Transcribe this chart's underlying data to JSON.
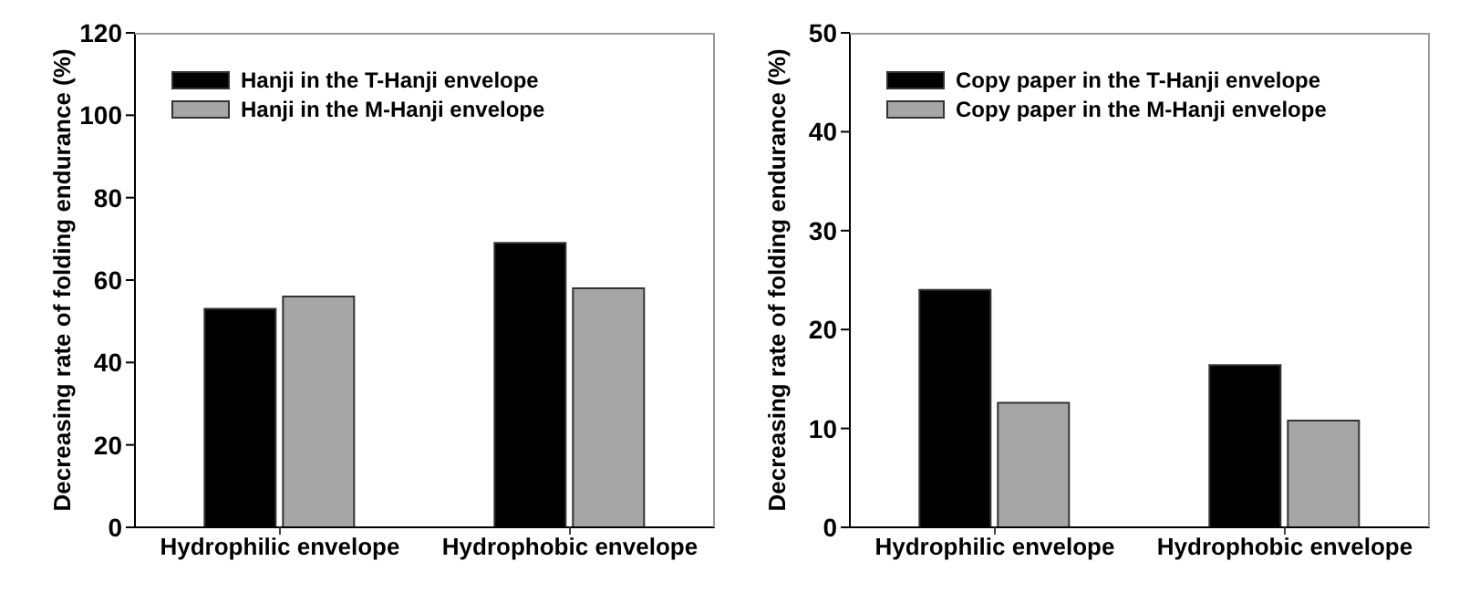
{
  "chart_data": [
    {
      "type": "bar",
      "ylabel": "Decreasing rate of folding endurance (%)",
      "categories": [
        "Hydrophilic envelope",
        "Hydrophobic envelope"
      ],
      "series": [
        {
          "name": "Hanji in the T-Hanji envelope",
          "color": "#000000",
          "values": [
            53,
            69
          ]
        },
        {
          "name": "Hanji in the M-Hanji envelope",
          "color": "#a6a6a6",
          "values": [
            56,
            58
          ]
        }
      ],
      "ylim": [
        0,
        120
      ],
      "yticks": [
        0,
        20,
        40,
        60,
        80,
        100,
        120
      ],
      "grid": false,
      "legend": "top left"
    },
    {
      "type": "bar",
      "ylabel": "Decreasing rate of folding endurance (%)",
      "categories": [
        "Hydrophilic envelope",
        "Hydrophobic envelope"
      ],
      "series": [
        {
          "name": "Copy paper in the T-Hanji envelope",
          "color": "#000000",
          "values": [
            24,
            16.4
          ]
        },
        {
          "name": "Copy paper in the M-Hanji envelope",
          "color": "#a6a6a6",
          "values": [
            12.6,
            10.8
          ]
        }
      ],
      "ylim": [
        0,
        50
      ],
      "yticks": [
        0,
        10,
        20,
        30,
        40,
        50
      ],
      "grid": false,
      "legend": "top left"
    }
  ]
}
